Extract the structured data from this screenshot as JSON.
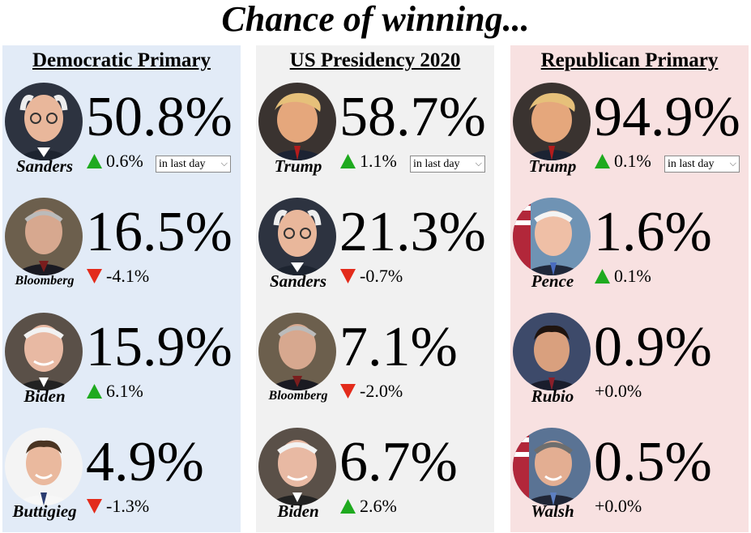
{
  "title": "Chance of winning...",
  "period_select": {
    "selected": "in last day",
    "icon": "chevron-down-icon"
  },
  "colors": {
    "democratic_bg": "#e2ebf7",
    "presidency_bg": "#f1f1f1",
    "republican_bg": "#f8e1e1",
    "up_arrow": "#1faa1f",
    "down_arrow": "#e32b1b"
  },
  "columns": [
    {
      "heading": "Democratic Primary",
      "candidates": [
        {
          "name": "Sanders",
          "pct": "50.8%",
          "change": "0.6%",
          "direction": "up"
        },
        {
          "name": "Bloomberg",
          "pct": "16.5%",
          "change": "-4.1%",
          "direction": "down"
        },
        {
          "name": "Biden",
          "pct": "15.9%",
          "change": "6.1%",
          "direction": "up"
        },
        {
          "name": "Buttigieg",
          "pct": "4.9%",
          "change": "-1.3%",
          "direction": "down"
        }
      ]
    },
    {
      "heading": "US Presidency 2020",
      "candidates": [
        {
          "name": "Trump",
          "pct": "58.7%",
          "change": "1.1%",
          "direction": "up"
        },
        {
          "name": "Sanders",
          "pct": "21.3%",
          "change": "-0.7%",
          "direction": "down"
        },
        {
          "name": "Bloomberg",
          "pct": "7.1%",
          "change": "-2.0%",
          "direction": "down"
        },
        {
          "name": "Biden",
          "pct": "6.7%",
          "change": "2.6%",
          "direction": "up"
        }
      ]
    },
    {
      "heading": "Republican Primary",
      "candidates": [
        {
          "name": "Trump",
          "pct": "94.9%",
          "change": "0.1%",
          "direction": "up"
        },
        {
          "name": "Pence",
          "pct": "1.6%",
          "change": "0.1%",
          "direction": "up"
        },
        {
          "name": "Rubio",
          "pct": "0.9%",
          "change": "+0.0%",
          "direction": "none"
        },
        {
          "name": "Walsh",
          "pct": "0.5%",
          "change": "+0.0%",
          "direction": "none"
        }
      ]
    }
  ]
}
